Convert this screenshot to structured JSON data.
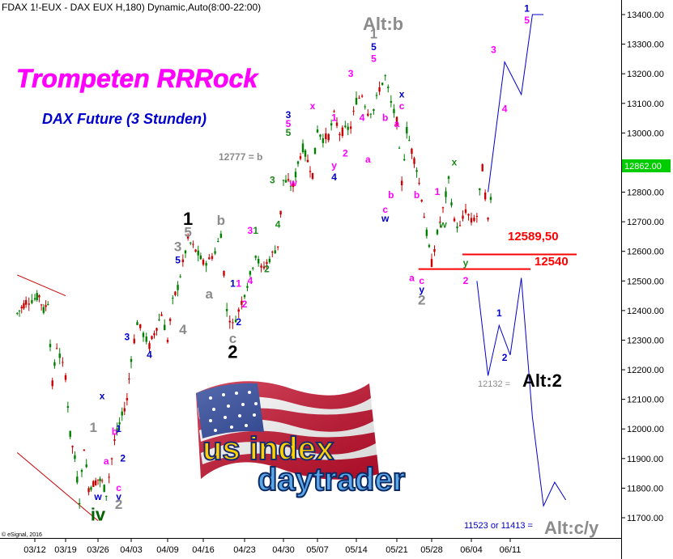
{
  "header": {
    "symbol_line": "FDAX 1!-EUX - DAX EUX H,180) Dynamic,Auto(8:00-22:00)",
    "copyright": "© eSignal, 2016"
  },
  "texts": {
    "headline": "Trompeten RRRock",
    "subheadline": "DAX Future (3 Stunden)",
    "alt_b": "Alt:b",
    "alt_2": "Alt:2",
    "alt_cy": "Alt:c/y",
    "ref_12777": "12777 = b",
    "ref_12132": "12132 =",
    "ref_11523": "11523 or 11413 =",
    "level_1": "12589,50",
    "level_2": "12540",
    "last_price": "12862.00",
    "logo_top": "us index",
    "logo_bottom": "daytrader"
  },
  "colors": {
    "headline": "#ff00ff",
    "subheadline": "#0000cc",
    "grey": "#8c8c8c",
    "blue": "#0000cc",
    "magenta": "#ff00ff",
    "green": "#1a8a1a",
    "black": "#000000",
    "red": "#ff0000",
    "darkgreen": "#006400",
    "last_price_bg": "#00cc00",
    "channel": "#cc0000",
    "projection": "#0000cc"
  },
  "chart_data": {
    "type": "line",
    "x": [
      "03/12",
      "03/19",
      "03/26",
      "04/03",
      "04/09",
      "04/16",
      "04/23",
      "04/30",
      "05/07",
      "05/14",
      "05/21",
      "05/28",
      "06/04",
      "06/11"
    ],
    "ylim": [
      11650,
      13450
    ],
    "yticks": [
      "13400.00",
      "13300.00",
      "13200.00",
      "13100.00",
      "13000.00",
      "12900.00",
      "12800.00",
      "12700.00",
      "12600.00",
      "12500.00",
      "12400.00",
      "12300.00",
      "12200.00",
      "12100.00",
      "12000.00",
      "11900.00",
      "11800.00",
      "11700.00"
    ],
    "horizontal_levels": [
      {
        "label": "12589,50",
        "value": 12589.5
      },
      {
        "label": "12540",
        "value": 12540
      }
    ],
    "price_series": {
      "x": [
        "03/08",
        "03/09",
        "03/10",
        "03/12",
        "03/13",
        "03/14",
        "03/15",
        "03/16",
        "03/17",
        "03/19",
        "03/20",
        "03/21",
        "03/22",
        "03/23",
        "03/24",
        "03/26",
        "03/27",
        "03/28",
        "03/30",
        "04/02",
        "04/03",
        "04/04",
        "04/05",
        "04/06",
        "04/08",
        "04/09",
        "04/10",
        "04/11",
        "04/12",
        "04/13",
        "04/15",
        "04/16",
        "04/17",
        "04/18",
        "04/19",
        "04/20",
        "04/21",
        "04/22",
        "04/23",
        "04/24",
        "04/25",
        "04/26",
        "04/27",
        "04/29",
        "04/30",
        "05/02",
        "05/03",
        "05/04",
        "05/06",
        "05/07",
        "05/08",
        "05/09",
        "05/10",
        "05/11",
        "05/13",
        "05/14",
        "05/15",
        "05/16",
        "05/17",
        "05/18",
        "05/19",
        "05/20",
        "05/21",
        "05/22",
        "05/23",
        "05/24",
        "05/25",
        "05/26",
        "05/27",
        "05/28",
        "05/29",
        "05/30",
        "05/31",
        "06/01",
        "06/02",
        "06/03",
        "06/04",
        "06/05",
        "06/06",
        "06/07",
        "06/08"
      ],
      "y": [
        12390,
        12410,
        12430,
        12440,
        12450,
        12400,
        12430,
        12150,
        12280,
        12180,
        11980,
        11900,
        11760,
        11940,
        11800,
        11830,
        11820,
        11780,
        11960,
        12100,
        12240,
        12360,
        12320,
        12280,
        12390,
        12300,
        12430,
        12480,
        12560,
        12640,
        12590,
        12560,
        12570,
        12600,
        12660,
        12400,
        12350,
        12400,
        12460,
        12520,
        12590,
        12540,
        12560,
        12620,
        12840,
        12820,
        12900,
        12950,
        12860,
        13010,
        12980,
        12990,
        13060,
        13000,
        13020,
        13110,
        13130,
        13070,
        13080,
        13150,
        13190,
        13100,
        13040,
        12830,
        13010,
        12940,
        12880,
        12780,
        12660,
        12560,
        12660,
        12740,
        12840,
        12700,
        12680,
        12740,
        12700,
        12720,
        12880,
        12700,
        12860
      ]
    },
    "channel_lines": [
      {
        "x": [
          "03/08",
          "03/19"
        ],
        "y": [
          12520,
          12450
        ]
      },
      {
        "x": [
          "03/08",
          "03/26"
        ],
        "y": [
          11920,
          11690
        ]
      }
    ],
    "projection": {
      "x": [
        "06/07",
        "06/10",
        "06/13",
        "06/15",
        "06/17"
      ],
      "y": [
        12800,
        13240,
        13130,
        13400,
        13400
      ]
    },
    "alternative_projection": {
      "x": [
        "06/05",
        "06/07",
        "06/09",
        "06/11",
        "06/13",
        "06/15",
        "06/17",
        "06/19",
        "06/21"
      ],
      "y": [
        12500,
        12180,
        12350,
        12250,
        12510,
        12040,
        11740,
        11820,
        11760
      ]
    },
    "wave_labels": [
      {
        "text": "iv",
        "x": "03/26",
        "y": 11690,
        "color": "darkgreen"
      },
      {
        "text": "w",
        "x": "03/26",
        "y": 11760,
        "color": "blue"
      },
      {
        "text": "1",
        "x": "03/25",
        "y": 11990,
        "color": "grey"
      },
      {
        "text": "x",
        "x": "03/27",
        "y": 12100,
        "color": "blue"
      },
      {
        "text": "a",
        "x": "03/28",
        "y": 11880,
        "color": "magenta"
      },
      {
        "text": "b",
        "x": "03/30",
        "y": 11980,
        "color": "magenta"
      },
      {
        "text": "1",
        "x": "03/31",
        "y": 11990,
        "color": "blue"
      },
      {
        "text": "2",
        "x": "04/01",
        "y": 11890,
        "color": "blue"
      },
      {
        "text": "c",
        "x": "03/31",
        "y": 11790,
        "color": "magenta"
      },
      {
        "text": "y",
        "x": "03/31",
        "y": 11760,
        "color": "blue"
      },
      {
        "text": "2",
        "x": "03/31",
        "y": 11730,
        "color": "grey"
      },
      {
        "text": "3",
        "x": "04/02",
        "y": 12300,
        "color": "blue"
      },
      {
        "text": "4",
        "x": "04/06",
        "y": 12240,
        "color": "blue"
      },
      {
        "text": "4",
        "x": "04/12",
        "y": 12320,
        "color": "grey"
      },
      {
        "text": "3",
        "x": "04/11",
        "y": 12600,
        "color": "grey"
      },
      {
        "text": "5",
        "x": "04/11",
        "y": 12560,
        "color": "blue"
      },
      {
        "text": "1",
        "x": "04/13",
        "y": 12690,
        "color": "black"
      },
      {
        "text": "5",
        "x": "04/13",
        "y": 12650,
        "color": "grey"
      },
      {
        "text": "b",
        "x": "04/19",
        "y": 12690,
        "color": "grey"
      },
      {
        "text": "a",
        "x": "04/17",
        "y": 12440,
        "color": "grey"
      },
      {
        "text": "1",
        "x": "04/21",
        "y": 12480,
        "color": "blue"
      },
      {
        "text": "1",
        "x": "04/22",
        "y": 12480,
        "color": "magenta"
      },
      {
        "text": "2",
        "x": "04/23",
        "y": 12410,
        "color": "magenta"
      },
      {
        "text": "2",
        "x": "04/22",
        "y": 12350,
        "color": "blue"
      },
      {
        "text": "c",
        "x": "04/21",
        "y": 12290,
        "color": "grey"
      },
      {
        "text": "2",
        "x": "04/21",
        "y": 12240,
        "color": "black"
      },
      {
        "text": "4",
        "x": "04/24",
        "y": 12490,
        "color": "magenta"
      },
      {
        "text": "3",
        "x": "04/24",
        "y": 12660,
        "color": "magenta"
      },
      {
        "text": "1",
        "x": "04/25",
        "y": 12660,
        "color": "green"
      },
      {
        "text": "2",
        "x": "04/27",
        "y": 12530,
        "color": "green"
      },
      {
        "text": "3",
        "x": "04/28",
        "y": 12830,
        "color": "green"
      },
      {
        "text": "4",
        "x": "04/29",
        "y": 12680,
        "color": "green"
      },
      {
        "text": "3",
        "x": "05/01",
        "y": 13050,
        "color": "blue"
      },
      {
        "text": "5",
        "x": "05/01",
        "y": 13020,
        "color": "magenta"
      },
      {
        "text": "5",
        "x": "05/01",
        "y": 12990,
        "color": "green"
      },
      {
        "text": "w",
        "x": "05/02",
        "y": 12820,
        "color": "magenta"
      },
      {
        "text": "x",
        "x": "05/06",
        "y": 13080,
        "color": "magenta"
      },
      {
        "text": "1",
        "x": "05/10",
        "y": 13040,
        "color": "magenta"
      },
      {
        "text": "2",
        "x": "05/12",
        "y": 12920,
        "color": "magenta"
      },
      {
        "text": "y",
        "x": "05/10",
        "y": 12880,
        "color": "magenta"
      },
      {
        "text": "4",
        "x": "05/10",
        "y": 12840,
        "color": "blue"
      },
      {
        "text": "3",
        "x": "05/13",
        "y": 13190,
        "color": "magenta"
      },
      {
        "text": "4",
        "x": "05/15",
        "y": 13040,
        "color": "magenta"
      },
      {
        "text": "1",
        "x": "05/17",
        "y": 13320,
        "color": "grey"
      },
      {
        "text": "5",
        "x": "05/17",
        "y": 13280,
        "color": "blue"
      },
      {
        "text": "5",
        "x": "05/17",
        "y": 13240,
        "color": "magenta"
      },
      {
        "text": "x",
        "x": "05/22",
        "y": 13120,
        "color": "blue"
      },
      {
        "text": "c",
        "x": "05/22",
        "y": 13080,
        "color": "magenta"
      },
      {
        "text": "b",
        "x": "05/19",
        "y": 13040,
        "color": "magenta"
      },
      {
        "text": "a",
        "x": "05/21",
        "y": 13020,
        "color": "magenta"
      },
      {
        "text": "a",
        "x": "05/16",
        "y": 12900,
        "color": "magenta"
      },
      {
        "text": "b",
        "x": "05/20",
        "y": 12780,
        "color": "magenta"
      },
      {
        "text": "c",
        "x": "05/19",
        "y": 12730,
        "color": "magenta"
      },
      {
        "text": "w",
        "x": "05/19",
        "y": 12700,
        "color": "blue"
      },
      {
        "text": "b",
        "x": "05/25",
        "y": 12780,
        "color": "magenta"
      },
      {
        "text": "a",
        "x": "05/24",
        "y": 12500,
        "color": "magenta"
      },
      {
        "text": "c",
        "x": "05/26",
        "y": 12490,
        "color": "magenta"
      },
      {
        "text": "y",
        "x": "05/26",
        "y": 12460,
        "color": "blue"
      },
      {
        "text": "2",
        "x": "05/26",
        "y": 12420,
        "color": "grey"
      },
      {
        "text": "1",
        "x": "05/29",
        "y": 12790,
        "color": "magenta"
      },
      {
        "text": "w",
        "x": "05/30",
        "y": 12680,
        "color": "green"
      },
      {
        "text": "x",
        "x": "06/01",
        "y": 12890,
        "color": "green"
      },
      {
        "text": "y",
        "x": "06/03",
        "y": 12550,
        "color": "green"
      },
      {
        "text": "2",
        "x": "06/03",
        "y": 12490,
        "color": "magenta"
      },
      {
        "text": "3",
        "x": "06/08",
        "y": 13270,
        "color": "magenta"
      },
      {
        "text": "4",
        "x": "06/10",
        "y": 13070,
        "color": "magenta"
      },
      {
        "text": "1",
        "x": "06/14",
        "y": 13410,
        "color": "blue"
      },
      {
        "text": "5",
        "x": "06/14",
        "y": 13370,
        "color": "magenta"
      },
      {
        "text": "1",
        "x": "06/09",
        "y": 12380,
        "color": "blue"
      },
      {
        "text": "2",
        "x": "06/10",
        "y": 12230,
        "color": "blue"
      }
    ]
  }
}
